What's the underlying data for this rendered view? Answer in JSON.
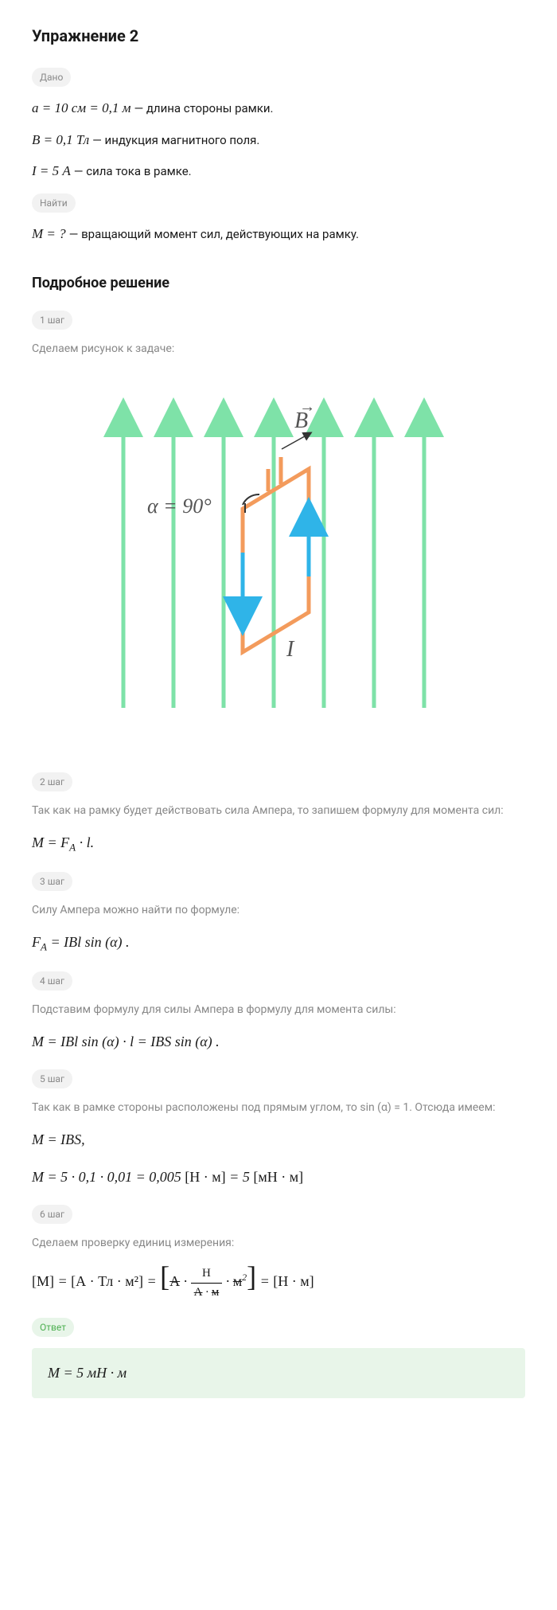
{
  "title": "Упражнение 2",
  "badges": {
    "given": "Дано",
    "find": "Найти",
    "answer": "Ответ"
  },
  "given": [
    {
      "formula": "a = 10 см = 0,1 м",
      "desc": "— длина стороны рамки."
    },
    {
      "formula": "B = 0,1 Тл",
      "desc": "— индукция магнитного поля."
    },
    {
      "formula": "I = 5 А",
      "desc": "— сила тока в рамке."
    }
  ],
  "find": {
    "formula": "M = ?",
    "desc": "— вращающий момент сил, действующих на рамку."
  },
  "solution_title": "Подробное решение",
  "steps": [
    {
      "label": "1 шаг",
      "text": "Сделаем рисунок к задаче:",
      "has_diagram": true
    },
    {
      "label": "2 шаг",
      "text": "Так как на рамку будет действовать сила Ампера, то запишем формулу для момента сил:",
      "formula_html": "M = F<sub>A</sub> · l."
    },
    {
      "label": "3 шаг",
      "text": "Силу Ампера можно найти по формуле:",
      "formula_html": "F<sub>A</sub> = IBl sin (α) ."
    },
    {
      "label": "4 шаг",
      "text": "Подставим формулу для силы Ампера в формулу для момента силы:",
      "formula_html": "M = IBl sin (α) · l = IBS sin (α) ."
    },
    {
      "label": "5 шаг",
      "text": "Так как в рамке стороны расположены под прямым углом, то sin (α) = 1. Отсюда имеем:",
      "formula_lines": [
        "M = IBS,",
        "M = 5 · 0,1 · 0,01 = 0,005 <span class=\"upright\">[Н · м]</span> = 5 <span class=\"upright\">[мН · м]</span>"
      ]
    },
    {
      "label": "6 шаг",
      "text": "Сделаем проверку единиц измерения:",
      "is_dim_check": true
    }
  ],
  "diagram": {
    "field_color": "#7ee2a8",
    "frame_color": "#f39b5c",
    "arrow_color": "#2fb4e8",
    "text_color": "#555555",
    "alpha_label": "α = 90°",
    "B_label": "B",
    "I_label": "I",
    "arrow_head": "#7ee2a8"
  },
  "dim_check": {
    "lhs": "[M]",
    "eq": "=",
    "term1": "[А · Тл · м²]",
    "frac_num": "Н",
    "frac_den_a": "А",
    "frac_den_m": "м",
    "result": "[Н · м]"
  },
  "answer": "M = 5 мН · м"
}
